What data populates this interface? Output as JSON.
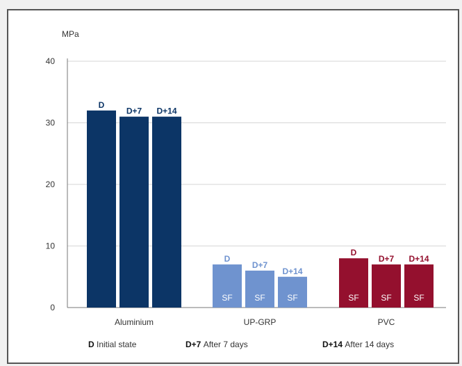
{
  "chart_data": {
    "type": "bar",
    "ylabel": "MPa",
    "ylim": [
      0,
      40
    ],
    "yticks": [
      0,
      10,
      20,
      30,
      40
    ],
    "grid": true,
    "categories": [
      "Aluminium",
      "UP-GRP",
      "PVC"
    ],
    "bar_labels": [
      "D",
      "D+7",
      "D+14"
    ],
    "series": [
      {
        "name": "D Initial state",
        "values": [
          32,
          7,
          8
        ]
      },
      {
        "name": "D+7 After 7 days",
        "values": [
          31,
          6,
          7
        ]
      },
      {
        "name": "D+14 After 14 days",
        "values": [
          31,
          5,
          7
        ]
      }
    ],
    "inside_labels": [
      [
        "",
        "",
        ""
      ],
      [
        "SF",
        "SF",
        "SF"
      ],
      [
        "SF",
        "SF",
        "SF"
      ]
    ],
    "category_colors": [
      "#0c3566",
      "#6f93cf",
      "#94102e"
    ],
    "legend_position": "bottom",
    "legend": [
      {
        "key": "D",
        "text": "Initial state"
      },
      {
        "key": "D+7",
        "text": "After 7 days"
      },
      {
        "key": "D+14",
        "text": "After 14 days"
      }
    ]
  }
}
